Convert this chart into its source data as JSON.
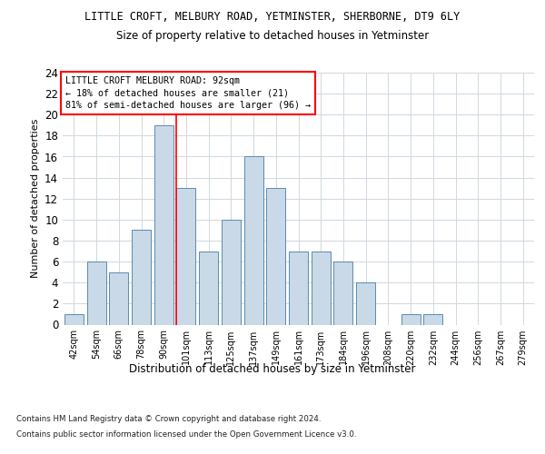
{
  "title1": "LITTLE CROFT, MELBURY ROAD, YETMINSTER, SHERBORNE, DT9 6LY",
  "title2": "Size of property relative to detached houses in Yetminster",
  "xlabel": "Distribution of detached houses by size in Yetminster",
  "ylabel": "Number of detached properties",
  "bar_labels": [
    "42sqm",
    "54sqm",
    "66sqm",
    "78sqm",
    "90sqm",
    "101sqm",
    "113sqm",
    "125sqm",
    "137sqm",
    "149sqm",
    "161sqm",
    "173sqm",
    "184sqm",
    "196sqm",
    "208sqm",
    "220sqm",
    "232sqm",
    "244sqm",
    "256sqm",
    "267sqm",
    "279sqm"
  ],
  "bar_values": [
    1,
    6,
    5,
    9,
    19,
    13,
    7,
    10,
    16,
    13,
    7,
    7,
    6,
    4,
    0,
    1,
    1,
    0,
    0,
    0,
    0
  ],
  "bar_color": "#c9d9e8",
  "bar_edge_color": "#5a8ab0",
  "ylim": [
    0,
    24
  ],
  "yticks": [
    0,
    2,
    4,
    6,
    8,
    10,
    12,
    14,
    16,
    18,
    20,
    22,
    24
  ],
  "red_line_x": 4.55,
  "annotation_line1": "LITTLE CROFT MELBURY ROAD: 92sqm",
  "annotation_line2": "← 18% of detached houses are smaller (21)",
  "annotation_line3": "81% of semi-detached houses are larger (96) →",
  "footer1": "Contains HM Land Registry data © Crown copyright and database right 2024.",
  "footer2": "Contains public sector information licensed under the Open Government Licence v3.0.",
  "bg_color": "#ffffff",
  "grid_color": "#d0d8e0"
}
